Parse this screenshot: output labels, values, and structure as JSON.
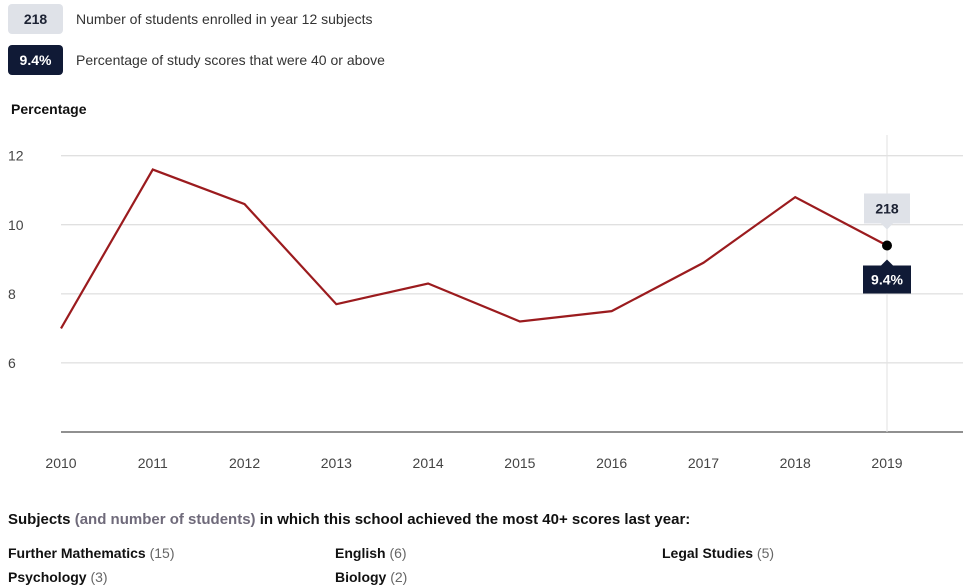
{
  "legend": {
    "enrolled_value": "218",
    "enrolled_label": "Number of students enrolled in year 12 subjects",
    "score_value": "9.4%",
    "score_label": "Percentage of study scores that were 40 or above"
  },
  "chart_data": {
    "type": "line",
    "ylabel": "Percentage",
    "x": [
      "2010",
      "2011",
      "2012",
      "2013",
      "2014",
      "2015",
      "2016",
      "2017",
      "2018",
      "2019"
    ],
    "series": [
      {
        "values": [
          7.0,
          11.6,
          10.6,
          7.7,
          8.3,
          7.2,
          7.5,
          8.9,
          10.8,
          9.4
        ],
        "color": "#9b1b1e"
      }
    ],
    "yticks": [
      "6",
      "8",
      "10",
      "12"
    ],
    "ylim": [
      4,
      12.6
    ],
    "grid": true,
    "highlight": {
      "x": "2019",
      "enrolled": "218",
      "percent": "9.4%"
    }
  },
  "subjects": {
    "heading_bold_1": "Subjects",
    "heading_muted": "(and number of students)",
    "heading_bold_2": "in which this school achieved the most 40+ scores last year:",
    "items": [
      {
        "name": "Further Mathematics",
        "count": "(15)"
      },
      {
        "name": "English",
        "count": "(6)"
      },
      {
        "name": "Legal Studies",
        "count": "(5)"
      },
      {
        "name": "Psychology",
        "count": "(3)"
      },
      {
        "name": "Biology",
        "count": "(2)"
      }
    ]
  }
}
